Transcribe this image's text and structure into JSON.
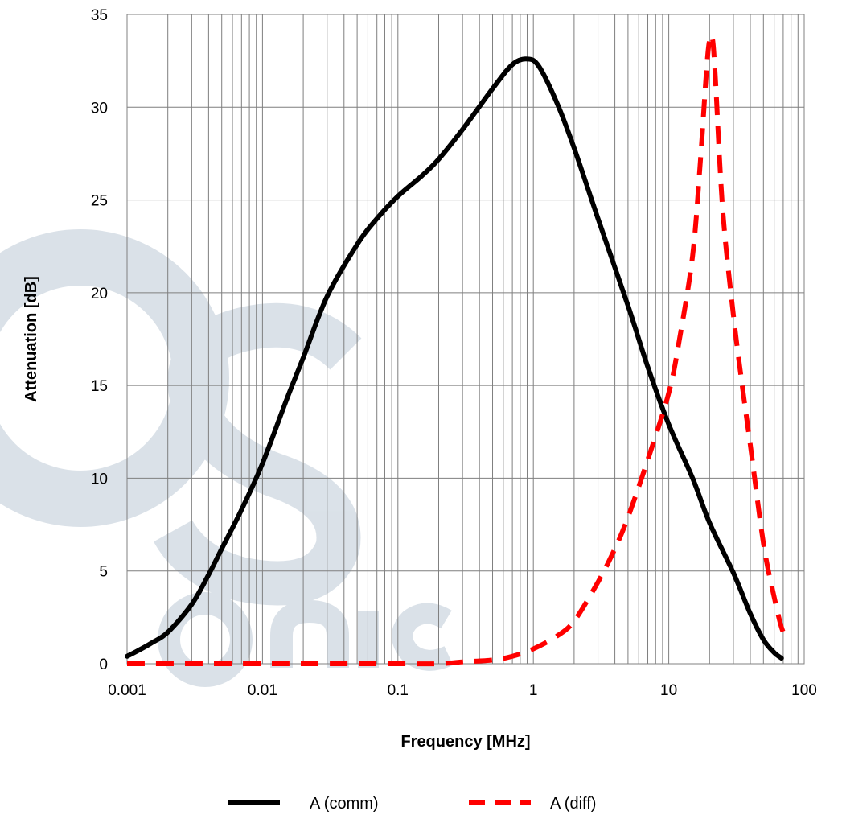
{
  "chart_data": {
    "type": "line",
    "xlabel": "Frequency [MHz]",
    "ylabel": "Attenuation [dB]",
    "x_scale": "log",
    "xlim": [
      0.001,
      100
    ],
    "ylim": [
      0,
      35
    ],
    "x_ticks": [
      0.001,
      0.01,
      0.1,
      1,
      10,
      100
    ],
    "x_tick_labels": [
      "0.001",
      "0.01",
      "0.1",
      "1",
      "10",
      "100"
    ],
    "y_ticks": [
      0,
      5,
      10,
      15,
      20,
      25,
      30,
      35
    ],
    "y_tick_labels": [
      "0",
      "5",
      "10",
      "15",
      "20",
      "25",
      "30",
      "35"
    ],
    "grid": true,
    "legend": "bottom",
    "series": [
      {
        "name": "A (comm)",
        "color": "#000000",
        "style": "solid",
        "x": [
          0.001,
          0.0012,
          0.0015,
          0.002,
          0.003,
          0.004,
          0.005,
          0.007,
          0.01,
          0.015,
          0.02,
          0.03,
          0.05,
          0.07,
          0.1,
          0.15,
          0.2,
          0.3,
          0.5,
          0.7,
          0.9,
          1.1,
          1.5,
          2,
          3,
          5,
          7,
          10,
          15,
          20,
          30,
          40,
          50,
          60,
          68
        ],
        "y": [
          0.4,
          0.7,
          1.1,
          1.7,
          3.2,
          4.8,
          6.2,
          8.3,
          10.8,
          14.2,
          16.5,
          19.8,
          22.6,
          24.0,
          25.2,
          26.3,
          27.2,
          28.8,
          31.0,
          32.3,
          32.6,
          32.2,
          30.2,
          27.8,
          24.0,
          19.3,
          16.0,
          12.9,
          10.0,
          7.6,
          4.9,
          2.7,
          1.3,
          0.6,
          0.3
        ]
      },
      {
        "name": "A (diff)",
        "color": "#ff0000",
        "style": "dashed",
        "x": [
          0.001,
          0.01,
          0.1,
          0.2,
          0.3,
          0.5,
          0.7,
          1,
          1.5,
          2,
          3,
          4,
          5,
          7,
          10,
          12,
          15,
          17,
          19,
          20,
          21,
          22,
          25,
          30,
          35,
          40,
          50,
          60,
          70,
          80
        ],
        "y": [
          0,
          0,
          0,
          0,
          0.1,
          0.2,
          0.4,
          0.8,
          1.5,
          2.3,
          4.4,
          6.2,
          7.9,
          11.0,
          14.6,
          17.5,
          22.0,
          26.8,
          32.0,
          33.6,
          33.7,
          31.8,
          24.5,
          18.8,
          14.9,
          11.8,
          6.5,
          3.6,
          1.7,
          1.5
        ]
      }
    ]
  }
}
